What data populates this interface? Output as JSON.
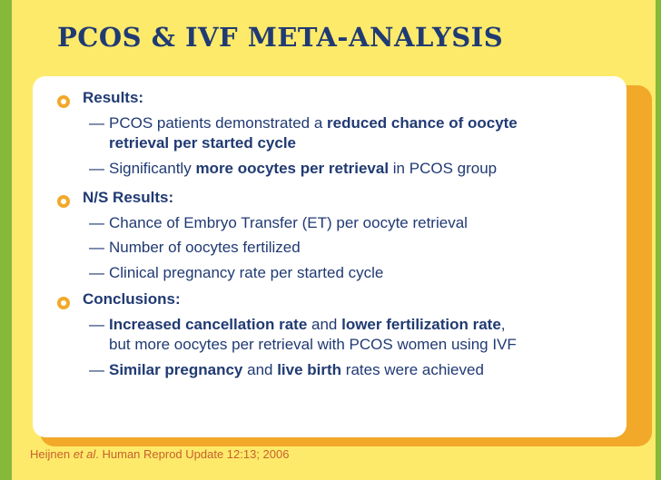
{
  "title": "PCOS & IVF META-ANALYSIS",
  "sections": [
    {
      "heading": "Results:",
      "items": [
        {
          "line1_pre": "PCOS patients demonstrated a ",
          "line1_bold": "reduced chance of oocyte",
          "line2_bold": "retrieval per started cycle"
        },
        {
          "pre": "Significantly ",
          "bold": "more oocytes per retrieval",
          "post": " in PCOS group"
        }
      ]
    },
    {
      "heading": "N/S Results:",
      "items": [
        "Chance of Embryo Transfer (ET) per oocyte retrieval",
        "Number of oocytes fertilized",
        "Clinical pregnancy rate per started cycle"
      ]
    },
    {
      "heading": "Conclusions:",
      "items": [
        {
          "bold1": "Increased cancellation rate",
          "mid": " and ",
          "bold2": "lower fertilization rate",
          "end": ",",
          "line2": "but more oocytes per retrieval with PCOS women using IVF"
        },
        {
          "bold1": "Similar pregnancy",
          "mid": " and ",
          "bold2": "live birth",
          "post": " rates were achieved"
        }
      ]
    }
  ],
  "dash": "—",
  "footer": {
    "author": "Heijnen ",
    "etal": "et al",
    "rest": ". Human Reprod Update 12:13; 2006"
  },
  "colors": {
    "background": "#FEEA6A",
    "side_bar": "#86B83A",
    "title": "#203A73",
    "panel_shadow": "#F2A92A",
    "bullet": "#F2A92A",
    "footer": "#C7612E"
  }
}
